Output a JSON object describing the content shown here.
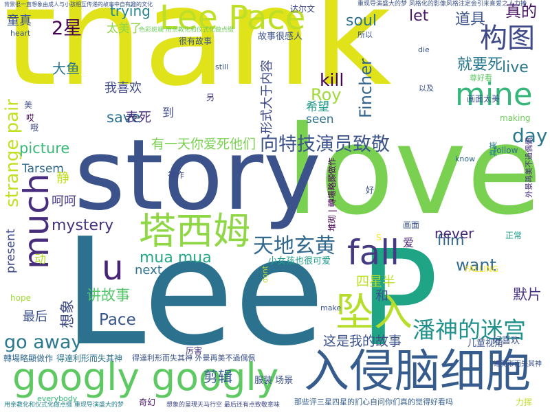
{
  "cloud": {
    "words": [
      {
        "text": "thank",
        "color": "#e0e21a"
      },
      {
        "text": "love",
        "color": "#7ad151"
      },
      {
        "text": "story",
        "color": "#3b528b"
      },
      {
        "text": "Lee",
        "color": "#2c728e"
      },
      {
        "text": "P",
        "color": "#20a486"
      },
      {
        "text": "入侵脑细胞",
        "color": "#365c8d"
      },
      {
        "text": "googly googly",
        "color": "#5ec962"
      },
      {
        "text": "Lee Pace",
        "color": "#bddf26"
      },
      {
        "text": "塔西姆",
        "color": "#8fd744"
      },
      {
        "text": "坠入",
        "color": "#b5de2b"
      },
      {
        "text": "mine",
        "color": "#35b779"
      },
      {
        "text": "much",
        "color": "#472d7b"
      },
      {
        "text": "构图",
        "color": "#3e4a89"
      },
      {
        "text": "fall",
        "color": "#443983"
      },
      {
        "text": "天地玄黄",
        "color": "#31688e"
      },
      {
        "text": "u",
        "color": "#482475"
      },
      {
        "text": "潘神的迷宫",
        "color": "#21918c"
      },
      {
        "text": "向特技演员致敬",
        "color": "#3b528b"
      },
      {
        "text": "strange pair",
        "color": "#c2df23"
      },
      {
        "text": "2星",
        "color": "#440154"
      },
      {
        "text": "这是我的故事",
        "color": "#3b528b"
      },
      {
        "text": "go away",
        "color": "#2a788e"
      },
      {
        "text": "save",
        "color": "#2c728e"
      },
      {
        "text": "day",
        "color": "#2a788e"
      },
      {
        "text": "kill",
        "color": "#440154"
      },
      {
        "text": "live",
        "color": "#2a788e"
      },
      {
        "text": "Roy",
        "color": "#a0da39"
      },
      {
        "text": "Fincher",
        "color": "#32648e"
      },
      {
        "text": "就要死",
        "color": "#2a788e"
      },
      {
        "text": "有一天你爱死他们",
        "color": "#7ad151"
      },
      {
        "text": "mystery",
        "color": "#46327e"
      },
      {
        "text": "want",
        "color": "#31688e"
      },
      {
        "text": "mua mua",
        "color": "#22a884"
      },
      {
        "text": "Pace",
        "color": "#39568c"
      },
      {
        "text": "讲故事",
        "color": "#54c568"
      },
      {
        "text": "四星半",
        "color": "#bddf26"
      },
      {
        "text": "默片",
        "color": "#46327e"
      },
      {
        "text": "剪辑",
        "color": "#355f8d"
      },
      {
        "text": "想象",
        "color": "#3e4989"
      },
      {
        "text": "道具",
        "color": "#3b528b"
      },
      {
        "text": "soul",
        "color": "#2c728e"
      },
      {
        "text": "let",
        "color": "#481769"
      },
      {
        "text": "真的",
        "color": "#471365"
      },
      {
        "text": "trying",
        "color": "#25858e"
      },
      {
        "text": "大鱼",
        "color": "#2a788e"
      },
      {
        "text": "太美了",
        "color": "#8fd744"
      },
      {
        "text": "童真",
        "color": "#3b528b"
      },
      {
        "text": "形式大于内容",
        "color": "#3e4989"
      },
      {
        "text": "我喜欢",
        "color": "#3e4a89"
      },
      {
        "text": "希望",
        "color": "#1f9a8a"
      },
      {
        "text": "seen",
        "color": "#2d708e"
      },
      {
        "text": "picture",
        "color": "#38b977"
      },
      {
        "text": "表死",
        "color": "#472c7a"
      },
      {
        "text": "Tarsem",
        "color": "#31688e"
      },
      {
        "text": "静",
        "color": "#c2df23"
      },
      {
        "text": "呵呵",
        "color": "#443a83"
      },
      {
        "text": "film",
        "color": "#31688e"
      },
      {
        "text": "never",
        "color": "#482878"
      },
      {
        "text": "和",
        "color": "#39568c"
      },
      {
        "text": "next",
        "color": "#2c728e"
      },
      {
        "text": "最后",
        "color": "#3b528b"
      },
      {
        "text": "present",
        "color": "#3e4989"
      },
      {
        "text": "动",
        "color": "#b5de2b"
      },
      {
        "text": "到",
        "color": "#3e4989"
      },
      {
        "text": "爱",
        "color": "#482475"
      },
      {
        "text": "服装 场景",
        "color": "#3b528b"
      },
      {
        "text": "奇幻",
        "color": "#481467"
      },
      {
        "text": "好喜欢",
        "color": "#3b528b"
      },
      {
        "text": "儿童视角",
        "color": "#3b528b"
      },
      {
        "text": "厉害",
        "color": "#46337f"
      },
      {
        "text": "故事很感人",
        "color": "#3b528b"
      },
      {
        "text": "很有故事",
        "color": "#3b528b"
      },
      {
        "text": "小女孩也很可爱",
        "color": "#1f9e89"
      },
      {
        "text": "那些评三星四星的扪心自问你们真的觉得好看吗",
        "color": "#355f8d"
      },
      {
        "text": "外景再美不過偶佩",
        "color": "#472d7b"
      },
      {
        "text": "轉場略顯做作",
        "color": "#31688e"
      },
      {
        "text": "得達利形而失其神",
        "color": "#2c728e"
      },
      {
        "text": "得達利形而失其神 外景再美不過偶佩",
        "color": "#3b528b"
      },
      {
        "text": "想象的呈現天马行空 最后还有点致敬意味",
        "color": "#3e4989"
      },
      {
        "text": "堆砌 | 轉場略顯做作",
        "color": "#440154"
      },
      {
        "text": "達利形而失其神",
        "color": "#3b528b"
      },
      {
        "text": "力挥",
        "color": "#bddf26"
      },
      {
        "text": "heart",
        "color": "#3b528b"
      },
      {
        "text": "FALLING",
        "color": "#fde725"
      },
      {
        "text": "making",
        "color": "#6ece58"
      },
      {
        "text": "follow",
        "color": "#2c728e"
      },
      {
        "text": "know",
        "color": "#31688e"
      },
      {
        "text": "正常",
        "color": "#1f9e89"
      },
      {
        "text": "画面",
        "color": "#3b528b"
      },
      {
        "text": "画面太美",
        "color": "#3b528b"
      },
      {
        "text": "尊好看",
        "color": "#5ec962"
      },
      {
        "text": "以及",
        "color": "#3b528b"
      },
      {
        "text": "真美",
        "color": "#26828e"
      },
      {
        "text": "美",
        "color": "#3e4989"
      },
      {
        "text": "哎",
        "color": "#440154"
      },
      {
        "text": "哦",
        "color": "#3e4989"
      },
      {
        "text": "神作",
        "color": "#3e4989"
      },
      {
        "text": "好",
        "color": "#3b528b"
      },
      {
        "text": "另",
        "color": "#443983"
      },
      {
        "text": "S",
        "color": "#fde725"
      },
      {
        "text": "still",
        "color": "#3b528b"
      },
      {
        "text": "hope",
        "color": "#a0da39"
      },
      {
        "text": "make",
        "color": "#3b528b"
      },
      {
        "text": "everybody",
        "color": "#35b779"
      },
      {
        "text": "dont",
        "color": "#b5de2b"
      },
      {
        "text": "die",
        "color": "#3b528b"
      },
      {
        "text": "所以",
        "color": "#3b528b"
      },
      {
        "text": "达尔文",
        "color": "#3e4989"
      },
      {
        "text": "色彩斑斓 用亲教化和仪式化做点缀",
        "color": "#6ece58"
      },
      {
        "text": "用亲教化和仪式化做点缀 重现导演盛大的梦",
        "color": "#26828e"
      },
      {
        "text": "重现导演盛大的梦 风格化的影像风格注定会引来喜爱之人力捧",
        "color": "#3b528b"
      },
      {
        "text": "背景很一直想象由成人与小孩相互传递的故事中自有趣的文化",
        "color": "#3b528b"
      }
    ]
  }
}
